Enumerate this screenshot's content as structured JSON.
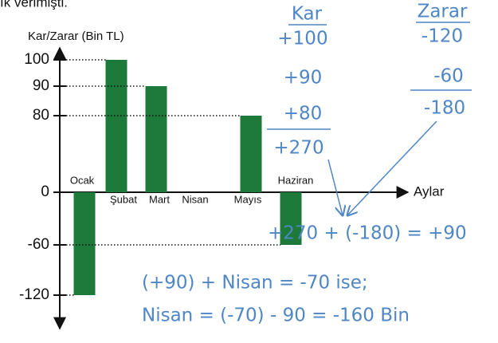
{
  "chart_data": {
    "type": "bar",
    "top_text": "ık verimişti.",
    "y_label": "Kar/Zarar (Bin TL)",
    "x_label": "Aylar",
    "categories": [
      "Ocak",
      "Şubat",
      "Mart",
      "Nisan",
      "Mayıs",
      "Haziran"
    ],
    "values": [
      -120,
      100,
      90,
      null,
      80,
      -60
    ],
    "color": "#1d7a3a",
    "ylim": [
      -150,
      112
    ],
    "yticks": [
      100,
      90,
      80,
      0,
      -60,
      -120
    ],
    "annotations": {
      "kar_header": "Kar",
      "kar_items": [
        "+100",
        "+90",
        "+80"
      ],
      "kar_total": "+270",
      "zarar_header": "Zarar",
      "zarar_items": [
        "-120",
        "-60"
      ],
      "zarar_total": "-180",
      "sum": "+270 + (-180) = +90",
      "line1": "(+90) + Nisan = -70 ise;",
      "line2": "Nisan = (-70) - 90 = -160 Bin"
    }
  }
}
